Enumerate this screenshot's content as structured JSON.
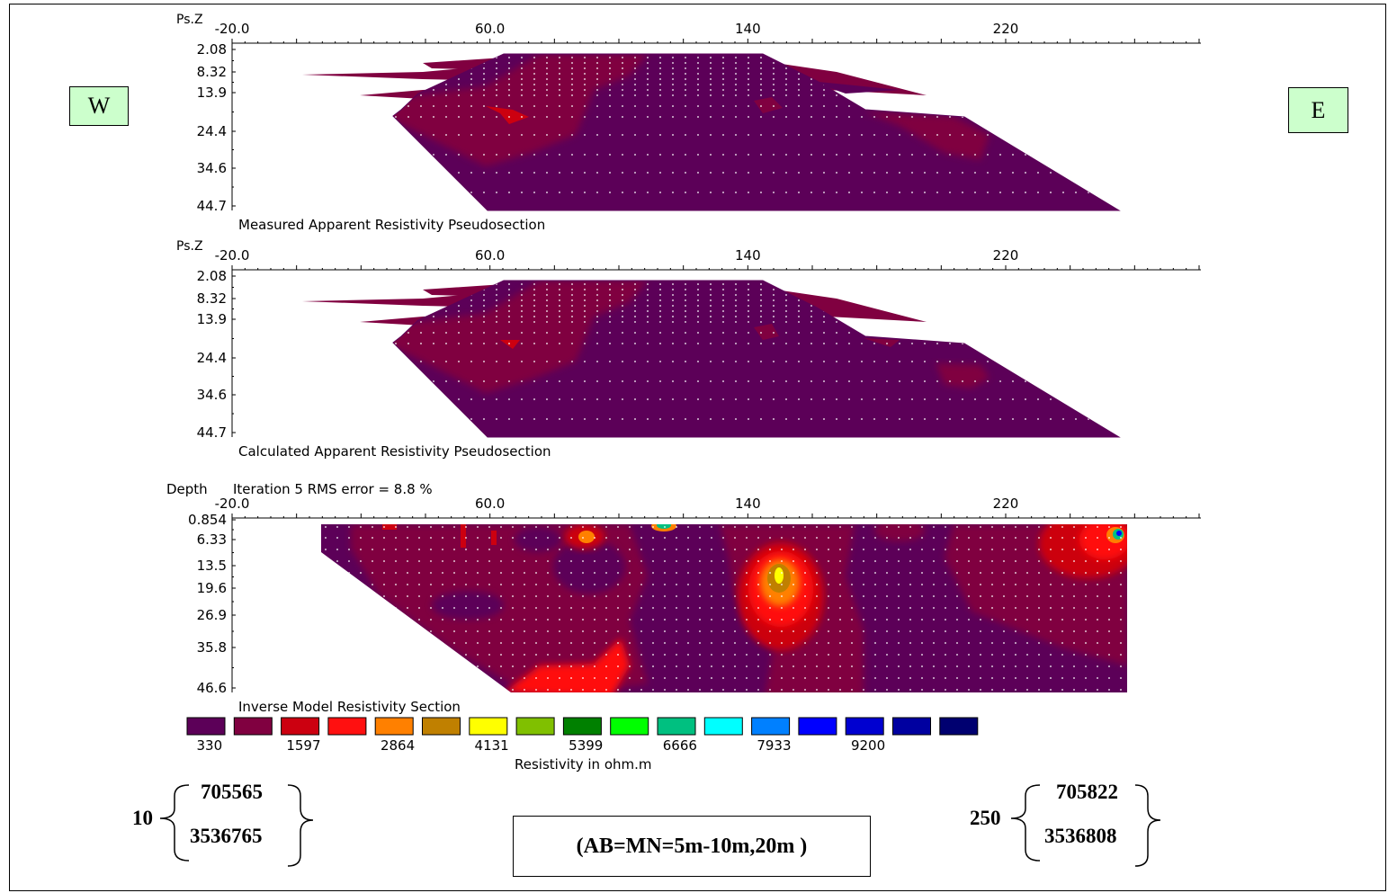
{
  "west_label": "W",
  "east_label": "E",
  "chart_data": [
    {
      "type": "heatmap",
      "ylabel": "Ps.Z",
      "x_ticks": [
        "-20.0",
        "60.0",
        "140",
        "220"
      ],
      "x_values": [
        -20,
        60,
        140,
        220
      ],
      "y_ticks": [
        "2.08",
        "8.32",
        "13.9",
        "24.4",
        "34.6",
        "44.7"
      ],
      "title": "Measured Apparent Resistivity Pseudosection"
    },
    {
      "type": "heatmap",
      "ylabel": "Ps.Z",
      "x_ticks": [
        "-20.0",
        "60.0",
        "140",
        "220"
      ],
      "x_values": [
        -20,
        60,
        140,
        220
      ],
      "y_ticks": [
        "2.08",
        "8.32",
        "13.9",
        "24.4",
        "34.6",
        "44.7"
      ],
      "title": "Calculated Apparent Resistivity Pseudosection"
    },
    {
      "type": "heatmap",
      "ylabel": "Depth",
      "subtitle": "Iteration 5 RMS error = 8.8 %",
      "x_ticks": [
        "-20.0",
        "60.0",
        "140",
        "220"
      ],
      "x_values": [
        -20,
        60,
        140,
        220
      ],
      "y_ticks": [
        "0.854",
        "6.33",
        "13.5",
        "19.6",
        "26.9",
        "35.8",
        "46.6"
      ],
      "title": "Inverse Model Resistivity Section"
    }
  ],
  "legend": {
    "colors": [
      "#5c0058",
      "#800040",
      "#cc0010",
      "#ff1010",
      "#ff8000",
      "#c08000",
      "#ffff00",
      "#80c000",
      "#008000",
      "#00ff00",
      "#00c080",
      "#00ffff",
      "#0080ff",
      "#0000ff",
      "#0000d0",
      "#0000a0",
      "#000070"
    ],
    "labels": [
      "330",
      "1597",
      "2864",
      "4131",
      "5399",
      "6666",
      "7933",
      "9200"
    ],
    "unit_label": "Resistivity in ohm.m"
  },
  "coords_left": {
    "station": "10",
    "easting": "705565",
    "northing": "3536765"
  },
  "coords_right": {
    "station": "250",
    "easting": "705822",
    "northing": "3536808"
  },
  "ab_note": "(AB=MN=5m-10m,20m )"
}
